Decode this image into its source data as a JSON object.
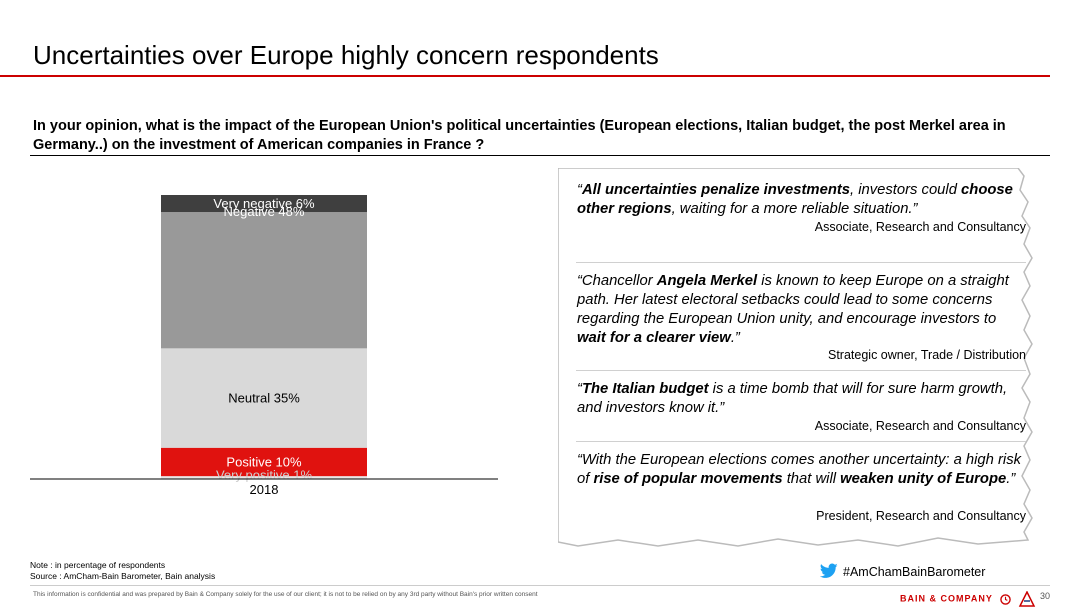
{
  "title": "Uncertainties over Europe highly concern respondents",
  "question": "In your opinion, what is the impact of the European Union's political uncertainties (European elections, Italian budget, the post Merkel area in Germany..) on the investment of American companies in France ?",
  "chart_data": {
    "type": "bar",
    "stacked": true,
    "categories": [
      "2018"
    ],
    "unit": "%",
    "series": [
      {
        "name": "Very positive",
        "values": [
          1
        ],
        "label": "Very positive 1%",
        "color": "#e8e8e8"
      },
      {
        "name": "Positive",
        "values": [
          10
        ],
        "label": "Positive 10%",
        "color": "#e0120f"
      },
      {
        "name": "Neutral",
        "values": [
          35
        ],
        "label": "Neutral 35%",
        "color": "#d9d9d9"
      },
      {
        "name": "Negative",
        "values": [
          48
        ],
        "label": "Negative 48%",
        "color": "#999999"
      },
      {
        "name": "Very negative",
        "values": [
          6
        ],
        "label": "Very negative 6%",
        "color": "#3f3f3f"
      }
    ],
    "ylim": [
      0,
      100
    ]
  },
  "quotes": [
    {
      "parts": [
        {
          "t": "“",
          "b": false
        },
        {
          "t": "All uncertainties penalize investments",
          "b": true
        },
        {
          "t": ", investors could ",
          "b": false
        },
        {
          "t": "choose other regions",
          "b": true
        },
        {
          "t": ", waiting for a more reliable situation.”",
          "b": false
        }
      ],
      "attribution": "Associate, Research and Consultancy"
    },
    {
      "parts": [
        {
          "t": "“Chancellor ",
          "b": false
        },
        {
          "t": "Angela Merkel",
          "b": true
        },
        {
          "t": " is known to keep Europe on a straight path. Her latest electoral setbacks could lead to some concerns regarding the European Union unity, and encourage investors to ",
          "b": false
        },
        {
          "t": "wait for a clearer view",
          "b": true
        },
        {
          "t": ".”",
          "b": false
        }
      ],
      "attribution": "Strategic owner, Trade / Distribution"
    },
    {
      "parts": [
        {
          "t": "“",
          "b": false
        },
        {
          "t": "The Italian budget",
          "b": true
        },
        {
          "t": " is a time bomb that will for sure harm growth, and investors know it.”",
          "b": false
        }
      ],
      "attribution": "Associate, Research and Consultancy"
    },
    {
      "parts": [
        {
          "t": "“With the European elections comes another uncertainty: a high risk of ",
          "b": false
        },
        {
          "t": "rise of popular movements",
          "b": true
        },
        {
          "t": " that will ",
          "b": false
        },
        {
          "t": "weaken unity of Europe",
          "b": true
        },
        {
          "t": ".”",
          "b": false
        }
      ],
      "attribution": "President, Research and Consultancy"
    }
  ],
  "note": {
    "line1": "Note : in percentage of respondents",
    "line2": "Source : AmCham-Bain Barometer, Bain analysis"
  },
  "hashtag": "#AmChamBainBarometer",
  "confidential": "This information is confidential and was prepared by Bain & Company solely for the use of our client; it is not to be relied on by any 3rd party without Bain's prior written consent",
  "logo_text": "BAIN & COMPANY",
  "page_number": "30",
  "icons": [
    "twitter-icon",
    "bain-logo-icon",
    "amcham-logo-icon"
  ]
}
